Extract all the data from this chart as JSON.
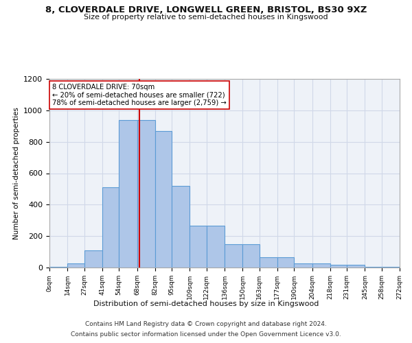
{
  "title_line1": "8, CLOVERDALE DRIVE, LONGWELL GREEN, BRISTOL, BS30 9XZ",
  "title_line2": "Size of property relative to semi-detached houses in Kingswood",
  "xlabel": "Distribution of semi-detached houses by size in Kingswood",
  "ylabel": "Number of semi-detached properties",
  "property_size": 70,
  "annotation_line1": "8 CLOVERDALE DRIVE: 70sqm",
  "annotation_line2": "← 20% of semi-detached houses are smaller (722)",
  "annotation_line3": "78% of semi-detached houses are larger (2,759) →",
  "bar_color": "#aec6e8",
  "bar_edge_color": "#5b9bd5",
  "red_line_color": "#cc0000",
  "grid_color": "#d0d8e8",
  "background_color": "#eef2f8",
  "footnote_line1": "Contains HM Land Registry data © Crown copyright and database right 2024.",
  "footnote_line2": "Contains public sector information licensed under the Open Government Licence v3.0.",
  "bin_edges": [
    0,
    14,
    27,
    41,
    54,
    68,
    82,
    95,
    109,
    122,
    136,
    150,
    163,
    177,
    190,
    204,
    218,
    231,
    245,
    258,
    272
  ],
  "bin_counts": [
    5,
    25,
    110,
    510,
    940,
    940,
    870,
    520,
    265,
    265,
    150,
    150,
    65,
    65,
    25,
    25,
    18,
    18,
    5,
    5
  ],
  "ylim": [
    0,
    1200
  ],
  "yticks": [
    0,
    200,
    400,
    600,
    800,
    1000,
    1200
  ],
  "annotation_box_color": "white",
  "annotation_box_edge": "#cc0000"
}
